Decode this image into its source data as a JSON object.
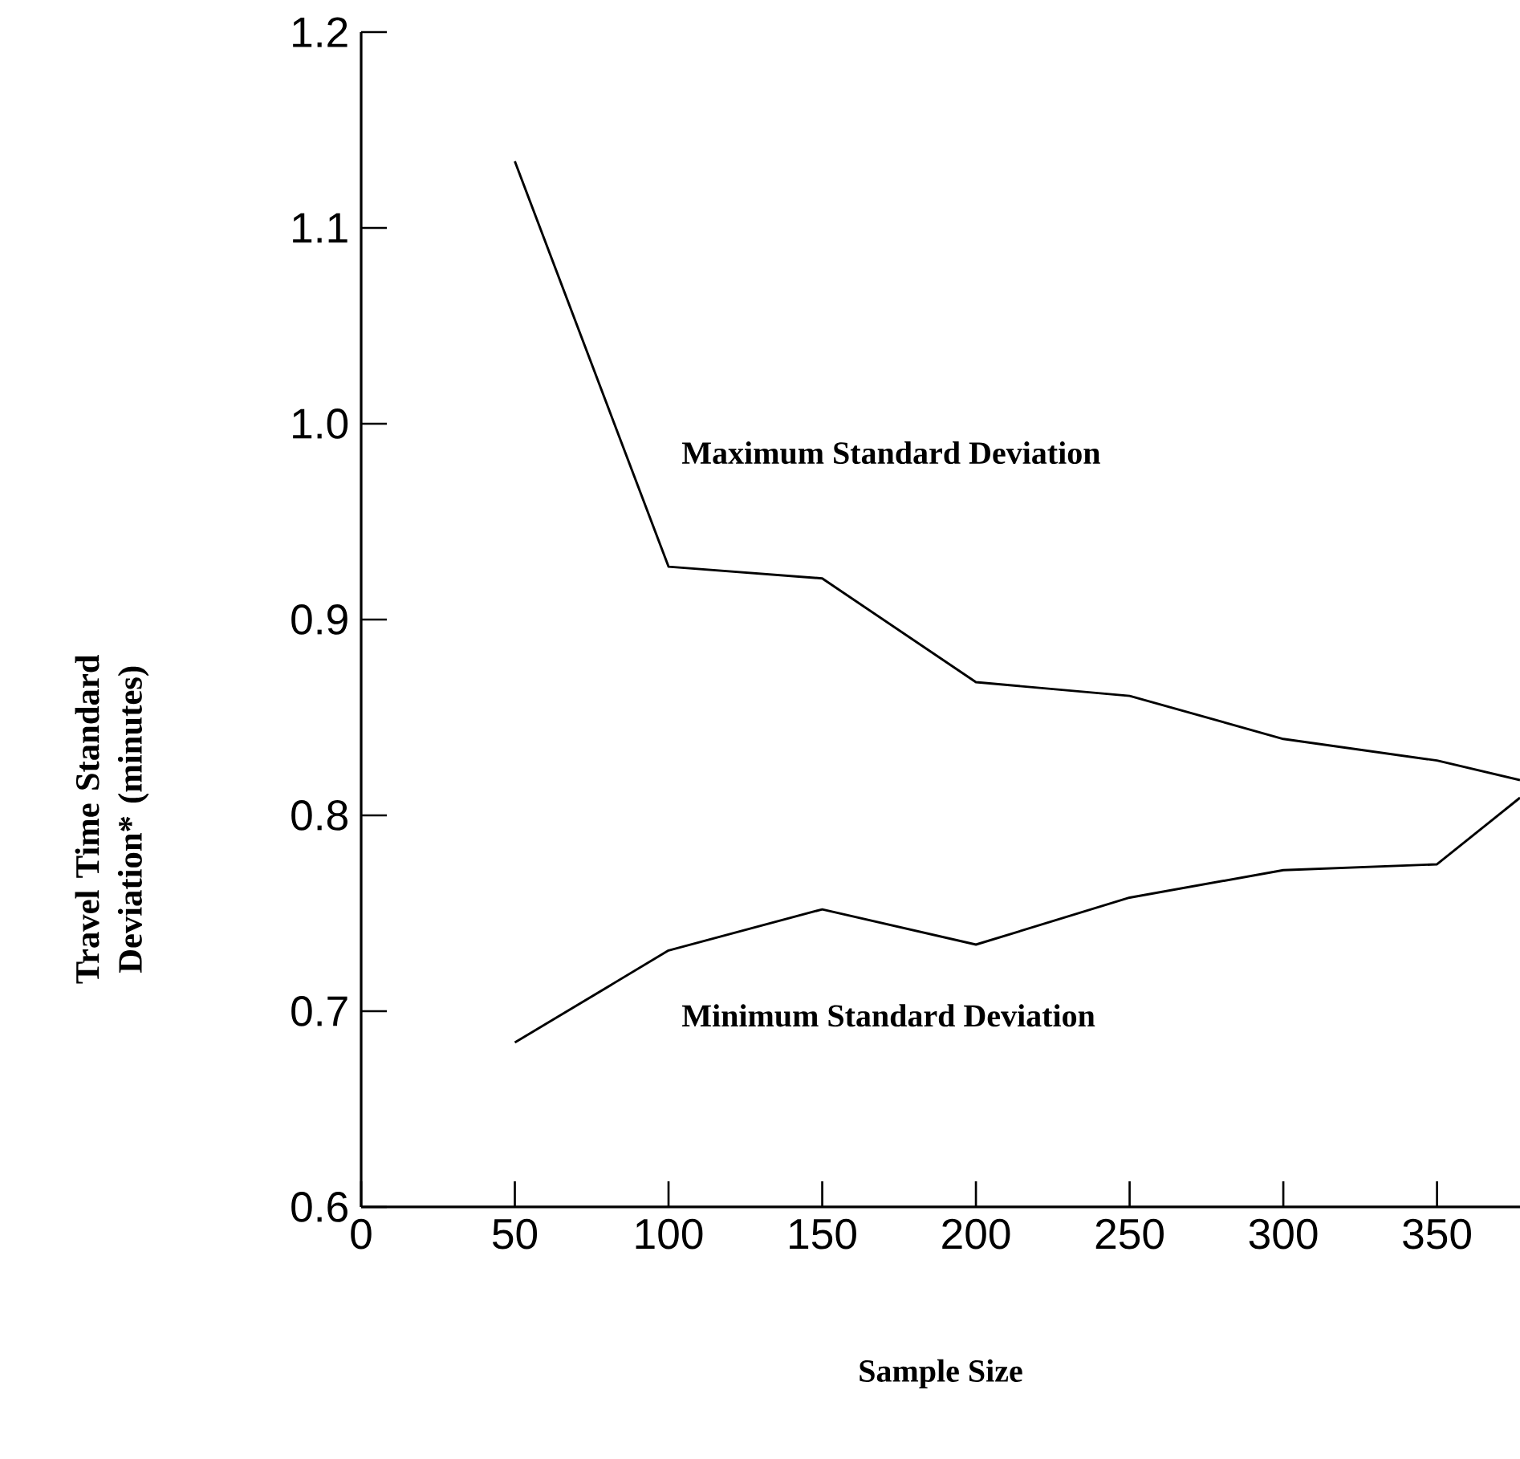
{
  "chart_data": {
    "type": "line",
    "xlabel": "Sample Size",
    "ylabel": "Travel Time Standard Deviation* (minutes)",
    "x": [
      50,
      100,
      150,
      200,
      250,
      300,
      350,
      377
    ],
    "series": [
      {
        "color": "#000000",
        "values": [
          1.134,
          0.927,
          0.921,
          0.868,
          0.861,
          0.839,
          0.828,
          0.818
        ]
      },
      {
        "color": "#000000",
        "values": [
          0.684,
          0.731,
          0.752,
          0.734,
          0.758,
          0.772,
          0.775,
          0.809
        ]
      }
    ],
    "xlim": [
      0,
      377
    ],
    "ylim": [
      0.6,
      1.2
    ],
    "xticks": [
      0,
      50,
      100,
      150,
      200,
      250,
      300,
      350
    ],
    "yticks": [
      0.6,
      0.7,
      0.8,
      0.9,
      {
        "value": 1.0,
        "label": "1.0"
      },
      1.1,
      1.2
    ],
    "annotations": [
      "Maximum Standard Deviation",
      "Minimum Standard Deviation"
    ],
    "grid": false,
    "marker": "none",
    "line_style": "solid"
  }
}
